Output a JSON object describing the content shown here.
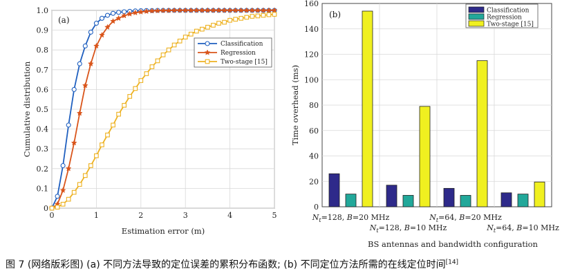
{
  "chart_data": [
    {
      "type": "line",
      "panel_label": "(a)",
      "xlabel": "Estimation error (m)",
      "ylabel": "Cumulative distribution",
      "xlim": [
        0,
        5
      ],
      "ylim": [
        0,
        1
      ],
      "xticks": [
        "0",
        "1",
        "2",
        "3",
        "4",
        "5"
      ],
      "yticks": [
        "0",
        "0.1",
        "0.2",
        "0.3",
        "0.4",
        "0.5",
        "0.6",
        "0.7",
        "0.8",
        "0.9",
        "1.0"
      ],
      "grid": true,
      "legend_position": "upper-right",
      "series": [
        {
          "name": "Classification",
          "color": "#1f5fbf",
          "marker": "circle",
          "x": [
            0,
            0.125,
            0.25,
            0.375,
            0.5,
            0.625,
            0.75,
            0.875,
            1.0,
            1.125,
            1.25,
            1.375,
            1.5,
            1.625,
            1.75,
            1.875,
            2.0,
            2.125,
            2.25,
            2.375,
            2.5,
            2.625,
            2.75,
            2.875,
            3.0,
            3.125,
            3.25,
            3.375,
            3.5,
            3.625,
            3.75,
            3.875,
            4.0,
            4.125,
            4.25,
            4.375,
            4.5,
            4.625,
            4.75,
            4.875,
            5.0
          ],
          "y": [
            0,
            0.06,
            0.215,
            0.42,
            0.6,
            0.73,
            0.82,
            0.89,
            0.935,
            0.96,
            0.975,
            0.985,
            0.99,
            0.993,
            0.995,
            0.997,
            0.998,
            0.999,
            0.999,
            1,
            1,
            1,
            1,
            1,
            1,
            1,
            1,
            1,
            1,
            1,
            1,
            1,
            1,
            1,
            1,
            1,
            1,
            1,
            1,
            1,
            1
          ]
        },
        {
          "name": "Regression",
          "color": "#d9541a",
          "marker": "star",
          "x": [
            0,
            0.125,
            0.25,
            0.375,
            0.5,
            0.625,
            0.75,
            0.875,
            1.0,
            1.125,
            1.25,
            1.375,
            1.5,
            1.625,
            1.75,
            1.875,
            2.0,
            2.125,
            2.25,
            2.375,
            2.5,
            2.625,
            2.75,
            2.875,
            3.0,
            3.125,
            3.25,
            3.375,
            3.5,
            3.625,
            3.75,
            3.875,
            4.0,
            4.125,
            4.25,
            4.375,
            4.5,
            4.625,
            4.75,
            4.875,
            5.0
          ],
          "y": [
            0,
            0.02,
            0.09,
            0.2,
            0.33,
            0.48,
            0.62,
            0.73,
            0.82,
            0.875,
            0.915,
            0.945,
            0.96,
            0.973,
            0.982,
            0.988,
            0.992,
            0.995,
            0.997,
            0.998,
            0.999,
            0.999,
            1,
            1,
            1,
            1,
            1,
            1,
            1,
            1,
            1,
            1,
            1,
            1,
            1,
            1,
            1,
            1,
            1,
            1,
            1
          ]
        },
        {
          "name": "Two-stage [15]",
          "color": "#edb120",
          "marker": "square",
          "x": [
            0,
            0.125,
            0.25,
            0.375,
            0.5,
            0.625,
            0.75,
            0.875,
            1.0,
            1.125,
            1.25,
            1.375,
            1.5,
            1.625,
            1.75,
            1.875,
            2.0,
            2.125,
            2.25,
            2.375,
            2.5,
            2.625,
            2.75,
            2.875,
            3.0,
            3.125,
            3.25,
            3.375,
            3.5,
            3.625,
            3.75,
            3.875,
            4.0,
            4.125,
            4.25,
            4.375,
            4.5,
            4.625,
            4.75,
            4.875,
            5.0
          ],
          "y": [
            0,
            0.005,
            0.02,
            0.045,
            0.08,
            0.12,
            0.165,
            0.215,
            0.265,
            0.32,
            0.37,
            0.42,
            0.475,
            0.52,
            0.565,
            0.605,
            0.645,
            0.68,
            0.715,
            0.745,
            0.775,
            0.8,
            0.825,
            0.845,
            0.865,
            0.88,
            0.895,
            0.905,
            0.915,
            0.925,
            0.935,
            0.94,
            0.95,
            0.955,
            0.96,
            0.965,
            0.97,
            0.972,
            0.975,
            0.978,
            0.98
          ]
        }
      ]
    },
    {
      "type": "bar",
      "panel_label": "(b)",
      "xlabel": "BS antennas and bandwidth configuration",
      "ylabel": "Time overhead (ms)",
      "ylim": [
        0,
        160
      ],
      "yticks": [
        "0",
        "20",
        "40",
        "60",
        "80",
        "100",
        "120",
        "140",
        "160"
      ],
      "grid": true,
      "legend_position": "top-right",
      "categories": [
        {
          "pre": "N",
          "sub": "t",
          "post": "=128, ",
          "var": "B",
          "tail": "=20 MHz"
        },
        {
          "pre": "N",
          "sub": "t",
          "post": "=128, ",
          "var": "B",
          "tail": "=10 MHz"
        },
        {
          "pre": "N",
          "sub": "t",
          "post": "=64, ",
          "var": "B",
          "tail": "=20 MHz"
        },
        {
          "pre": "N",
          "sub": "t",
          "post": "=64, ",
          "var": "B",
          "tail": "=10 MHz"
        }
      ],
      "series": [
        {
          "name": "Classification",
          "color": "#2e2a8a",
          "values": [
            26,
            17,
            14.5,
            11
          ]
        },
        {
          "name": "Regression",
          "color": "#22a89a",
          "values": [
            10,
            9,
            9,
            10
          ]
        },
        {
          "name": "Two-stage [15]",
          "color": "#f0f020",
          "values": [
            154,
            79,
            115,
            19.5
          ]
        }
      ]
    }
  ],
  "caption": {
    "label": "图 7",
    "text": "(网络版彩图) (a) 不同方法导致的定位误差的累积分布函数; (b) 不同定位方法所需的在线定位时间",
    "ref": "[14]"
  }
}
